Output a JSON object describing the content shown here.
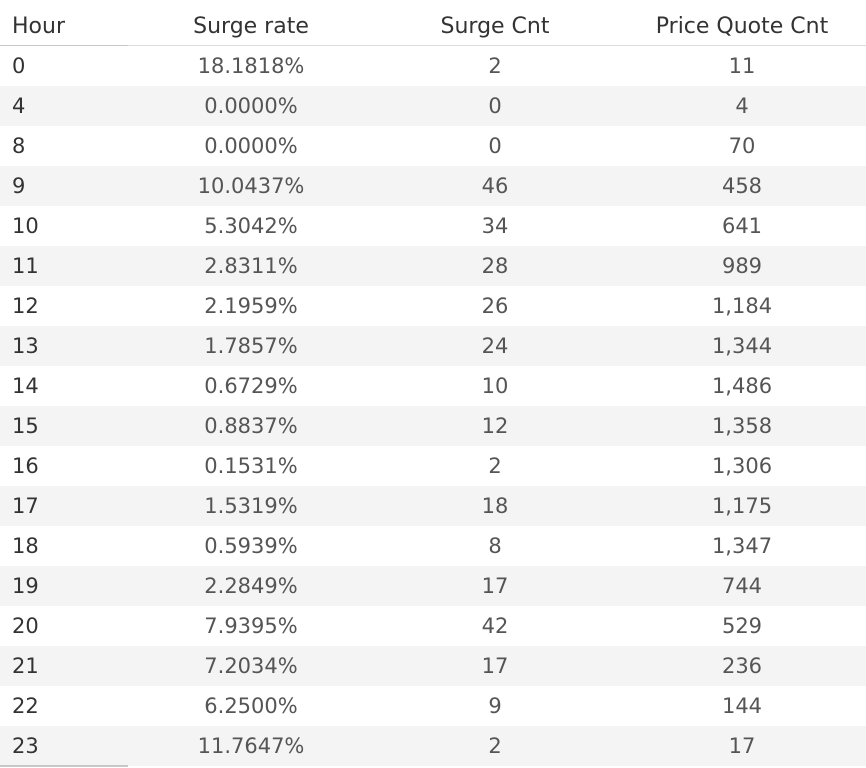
{
  "chart_data": {
    "type": "table",
    "columns": [
      "Hour",
      "Surge rate",
      "Surge Cnt",
      "Price Quote Cnt"
    ],
    "rows": [
      {
        "hour": "0",
        "surge_rate": "18.1818%",
        "surge_cnt": "2",
        "price_quote_cnt": "11"
      },
      {
        "hour": "4",
        "surge_rate": "0.0000%",
        "surge_cnt": "0",
        "price_quote_cnt": "4"
      },
      {
        "hour": "8",
        "surge_rate": "0.0000%",
        "surge_cnt": "0",
        "price_quote_cnt": "70"
      },
      {
        "hour": "9",
        "surge_rate": "10.0437%",
        "surge_cnt": "46",
        "price_quote_cnt": "458"
      },
      {
        "hour": "10",
        "surge_rate": "5.3042%",
        "surge_cnt": "34",
        "price_quote_cnt": "641"
      },
      {
        "hour": "11",
        "surge_rate": "2.8311%",
        "surge_cnt": "28",
        "price_quote_cnt": "989"
      },
      {
        "hour": "12",
        "surge_rate": "2.1959%",
        "surge_cnt": "26",
        "price_quote_cnt": "1,184"
      },
      {
        "hour": "13",
        "surge_rate": "1.7857%",
        "surge_cnt": "24",
        "price_quote_cnt": "1,344"
      },
      {
        "hour": "14",
        "surge_rate": "0.6729%",
        "surge_cnt": "10",
        "price_quote_cnt": "1,486"
      },
      {
        "hour": "15",
        "surge_rate": "0.8837%",
        "surge_cnt": "12",
        "price_quote_cnt": "1,358"
      },
      {
        "hour": "16",
        "surge_rate": "0.1531%",
        "surge_cnt": "2",
        "price_quote_cnt": "1,306"
      },
      {
        "hour": "17",
        "surge_rate": "1.5319%",
        "surge_cnt": "18",
        "price_quote_cnt": "1,175"
      },
      {
        "hour": "18",
        "surge_rate": "0.5939%",
        "surge_cnt": "8",
        "price_quote_cnt": "1,347"
      },
      {
        "hour": "19",
        "surge_rate": "2.2849%",
        "surge_cnt": "17",
        "price_quote_cnt": "744"
      },
      {
        "hour": "20",
        "surge_rate": "7.9395%",
        "surge_cnt": "42",
        "price_quote_cnt": "529"
      },
      {
        "hour": "21",
        "surge_rate": "7.2034%",
        "surge_cnt": "17",
        "price_quote_cnt": "236"
      },
      {
        "hour": "22",
        "surge_rate": "6.2500%",
        "surge_cnt": "9",
        "price_quote_cnt": "144"
      },
      {
        "hour": "23",
        "surge_rate": "11.7647%",
        "surge_cnt": "2",
        "price_quote_cnt": "17"
      }
    ],
    "colors": {
      "band": "#f4f4f4",
      "text": "#333333",
      "value_text": "#555555",
      "rule": "#c8c8c8"
    }
  }
}
